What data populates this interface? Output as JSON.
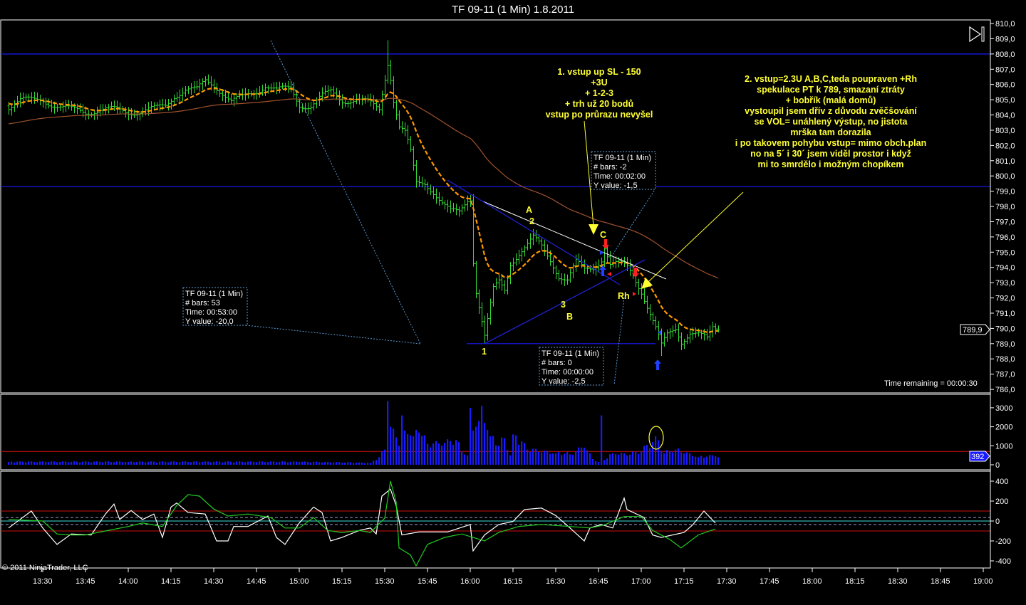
{
  "title": "TF 09-11 (1 Min)  1.8.2011",
  "copyright": "© 2011 NinjaTrader, LLC",
  "time_remaining": "Time remaining = 00:00:30",
  "last_price_label": "789,9",
  "last_volume_label": "392",
  "icons": {
    "scroll_end": "skip-to-end-icon"
  },
  "colors": {
    "bars": "#33dd33",
    "ema_fast": "#ff9900",
    "ema_slow": "#a0522d",
    "hline": "#1a1aff",
    "volume": "#1a1aff",
    "volume_ref": "#cc1111",
    "osc_white": "#ffffff",
    "osc_green": "#22cc22",
    "osc_zero": "#40e0e0",
    "osc_band": "#cc1111",
    "annotation": "#ffff33"
  },
  "annotations": {
    "note1": [
      "1. vstup up SL - 150",
      "+3U",
      "+ 1-2-3",
      "+ trh už 20 bodů",
      "vstup po průrazu nevyšel"
    ],
    "note2": [
      "2. vstup=2.3U A,B,C,teda poupraven +Rh",
      "spekulace PT k 789, smazaní ztráty",
      "+ bobřík (malá domů)",
      "vystoupil jsem dřív z důvodu zvěčšování",
      "se VOL= unáhlený výstup, no jistota",
      "mrška tam dorazila",
      "i po takovem pohybu vstup= mimo obch.plan",
      "no na 5´ i 30´ jsem viděl prostor i když",
      "mi to smrdělo i možným chopíkem"
    ],
    "labels": {
      "A": "A",
      "two": "2",
      "C": "C",
      "three": "3",
      "B": "B",
      "one": "1",
      "Rh": "Rh"
    }
  },
  "measure_boxes": [
    {
      "title": "TF 09-11 (1 Min)",
      "bars": "# bars:   53",
      "time": "Time:     00:53:00",
      "yvalue": "Y value: -20,0"
    },
    {
      "title": "TF 09-11 (1 Min)",
      "bars": "# bars:   -2",
      "time": "Time:     00:02:00",
      "yvalue": "Y value: -1,5"
    },
    {
      "title": "TF 09-11 (1 Min)",
      "bars": "# bars:   0",
      "time": "Time:     00:00:00",
      "yvalue": "Y value: -2,5"
    }
  ],
  "chart_data": [
    {
      "type": "ohlc",
      "panel": "price",
      "ylim": [
        786,
        810
      ],
      "y_ticks": [
        "786,0",
        "787,0",
        "788,0",
        "789,0",
        "790,0",
        "791,0",
        "792,0",
        "793,0",
        "794,0",
        "795,0",
        "796,0",
        "797,0",
        "798,0",
        "799,0",
        "800,0",
        "801,0",
        "802,0",
        "803,0",
        "804,0",
        "805,0",
        "806,0",
        "807,0",
        "808,0",
        "809,0",
        "810,0"
      ],
      "x_ticks": [
        "13:30",
        "13:45",
        "14:00",
        "14:15",
        "14:30",
        "14:45",
        "15:00",
        "15:15",
        "15:30",
        "15:45",
        "16:00",
        "16:15",
        "16:30",
        "16:45",
        "17:00",
        "17:15",
        "17:30",
        "17:45",
        "18:00",
        "18:15",
        "18:30",
        "18:45",
        "19:00"
      ],
      "horizontal_lines": [
        808.0,
        799.3
      ],
      "support_segment": {
        "price": 789.0,
        "from": "16:05",
        "to": "17:05"
      },
      "close_path": [
        [
          "13:18",
          804.6
        ],
        [
          "13:22",
          805.0
        ],
        [
          "13:26",
          804.9
        ],
        [
          "13:30",
          805.0
        ],
        [
          "13:35",
          804.6
        ],
        [
          "13:40",
          804.3
        ],
        [
          "13:45",
          804.2
        ],
        [
          "13:50",
          804.4
        ],
        [
          "13:55",
          804.3
        ],
        [
          "14:00",
          804.2
        ],
        [
          "14:05",
          804.3
        ],
        [
          "14:10",
          804.4
        ],
        [
          "14:13",
          804.6
        ],
        [
          "14:16",
          805.3
        ],
        [
          "14:20",
          805.7
        ],
        [
          "14:24",
          805.6
        ],
        [
          "14:27",
          806.2
        ],
        [
          "14:30",
          806.0
        ],
        [
          "14:33",
          805.5
        ],
        [
          "14:36",
          804.9
        ],
        [
          "14:40",
          805.1
        ],
        [
          "14:45",
          805.6
        ],
        [
          "14:48",
          806.0
        ],
        [
          "14:52",
          805.6
        ],
        [
          "14:57",
          805.7
        ],
        [
          "15:00",
          804.7
        ],
        [
          "15:04",
          804.6
        ],
        [
          "15:08",
          805.2
        ],
        [
          "15:11",
          805.5
        ],
        [
          "15:15",
          805.0
        ],
        [
          "15:20",
          805.0
        ],
        [
          "15:25",
          804.7
        ],
        [
          "15:28",
          804.4
        ],
        [
          "15:29",
          805.5
        ],
        [
          "15:30",
          806.5
        ],
        [
          "15:31",
          807.5
        ],
        [
          "15:32",
          806.5
        ],
        [
          "15:33",
          805.0
        ],
        [
          "15:35",
          803.2
        ],
        [
          "15:37",
          802.8
        ],
        [
          "15:39",
          801.5
        ],
        [
          "15:41",
          799.5
        ],
        [
          "15:44",
          799.6
        ],
        [
          "15:47",
          799.0
        ],
        [
          "15:50",
          798.2
        ],
        [
          "15:53",
          797.6
        ],
        [
          "15:56",
          797.6
        ],
        [
          "15:59",
          798.5
        ],
        [
          "16:00",
          798.6
        ],
        [
          "16:01",
          794.5
        ],
        [
          "16:02",
          792.5
        ],
        [
          "16:04",
          790.5
        ],
        [
          "16:05",
          789.5
        ],
        [
          "16:06",
          790.5
        ],
        [
          "16:08",
          792.5
        ],
        [
          "16:10",
          793.0
        ],
        [
          "16:12",
          792.5
        ],
        [
          "16:14",
          794.3
        ],
        [
          "16:17",
          795.0
        ],
        [
          "16:20",
          795.5
        ],
        [
          "16:22",
          795.9
        ],
        [
          "16:25",
          795.3
        ],
        [
          "16:28",
          794.5
        ],
        [
          "16:31",
          793.5
        ],
        [
          "16:34",
          793.2
        ],
        [
          "16:37",
          794.3
        ],
        [
          "16:40",
          793.8
        ],
        [
          "16:43",
          794.0
        ],
        [
          "16:46",
          794.6
        ],
        [
          "16:47",
          795.4
        ],
        [
          "16:49",
          794.2
        ],
        [
          "16:52",
          794.2
        ],
        [
          "16:55",
          794.0
        ],
        [
          "16:57",
          793.5
        ],
        [
          "17:00",
          792.5
        ],
        [
          "17:03",
          791.0
        ],
        [
          "17:05",
          790.0
        ],
        [
          "17:07",
          788.8
        ],
        [
          "17:09",
          789.5
        ],
        [
          "17:12",
          790.0
        ],
        [
          "17:14",
          789.2
        ],
        [
          "17:17",
          789.8
        ],
        [
          "17:20",
          789.6
        ],
        [
          "17:23",
          789.2
        ],
        [
          "17:25",
          790.0
        ],
        [
          "17:27",
          789.9
        ]
      ],
      "extremes": [
        {
          "time": "15:31",
          "high": 808.9
        },
        {
          "time": "16:01",
          "high": 798.8
        },
        {
          "time": "16:05",
          "low": 789.0
        },
        {
          "time": "17:07",
          "low": 788.2
        }
      ],
      "last": 789.9
    },
    {
      "type": "bar",
      "panel": "volume",
      "ylim": [
        0,
        3500
      ],
      "y_ticks": [
        "0",
        "1000",
        "2000",
        "3000"
      ],
      "reference_line": 700,
      "volume_path": [
        [
          "13:18",
          150
        ],
        [
          "14:00",
          150
        ],
        [
          "15:00",
          150
        ],
        [
          "15:25",
          100
        ],
        [
          "15:28",
          400
        ],
        [
          "15:30",
          800
        ],
        [
          "15:31",
          3350
        ],
        [
          "15:32",
          2000
        ],
        [
          "15:33",
          1900
        ],
        [
          "15:35",
          1000
        ],
        [
          "15:36",
          2600
        ],
        [
          "15:37",
          1800
        ],
        [
          "15:40",
          1500
        ],
        [
          "15:42",
          1700
        ],
        [
          "15:45",
          1100
        ],
        [
          "15:50",
          1000
        ],
        [
          "15:55",
          1300
        ],
        [
          "15:57",
          700
        ],
        [
          "15:59",
          500
        ],
        [
          "16:00",
          3000
        ],
        [
          "16:01",
          1800
        ],
        [
          "16:02",
          2000
        ],
        [
          "16:03",
          2300
        ],
        [
          "16:04",
          3100
        ],
        [
          "16:05",
          2200
        ],
        [
          "16:07",
          1500
        ],
        [
          "16:10",
          1000
        ],
        [
          "16:12",
          1400
        ],
        [
          "16:14",
          500
        ],
        [
          "16:15",
          1600
        ],
        [
          "16:20",
          800
        ],
        [
          "16:25",
          650
        ],
        [
          "16:30",
          600
        ],
        [
          "16:35",
          550
        ],
        [
          "16:40",
          900
        ],
        [
          "16:43",
          300
        ],
        [
          "16:45",
          150
        ],
        [
          "16:46",
          2600
        ],
        [
          "16:47",
          250
        ],
        [
          "16:50",
          600
        ],
        [
          "16:55",
          500
        ],
        [
          "17:00",
          700
        ],
        [
          "17:04",
          1200
        ],
        [
          "17:05",
          1500
        ],
        [
          "17:08",
          600
        ],
        [
          "17:12",
          800
        ],
        [
          "17:15",
          600
        ],
        [
          "17:20",
          400
        ],
        [
          "17:26",
          450
        ],
        [
          "17:27",
          392
        ]
      ],
      "last": 392
    },
    {
      "type": "line",
      "panel": "oscillator",
      "ylim": [
        -480,
        480
      ],
      "y_ticks": [
        "-400",
        "-200",
        "0",
        "200",
        "400"
      ],
      "bands": [
        100,
        -100
      ],
      "inner_bands": [
        35,
        -35
      ],
      "series": [
        {
          "color": "#ffffff",
          "values": [
            [
              "13:18",
              -70
            ],
            [
              "13:26",
              100
            ],
            [
              "13:30",
              -70
            ],
            [
              "13:35",
              -235
            ],
            [
              "13:40",
              -130
            ],
            [
              "13:47",
              -140
            ],
            [
              "13:52",
              70
            ],
            [
              "13:55",
              170
            ],
            [
              "13:57",
              15
            ],
            [
              "14:01",
              105
            ],
            [
              "14:05",
              15
            ],
            [
              "14:09",
              70
            ],
            [
              "14:12",
              -165
            ],
            [
              "14:15",
              140
            ],
            [
              "14:17",
              180
            ],
            [
              "14:21",
              85
            ],
            [
              "14:27",
              70
            ],
            [
              "14:31",
              -200
            ],
            [
              "14:35",
              -200
            ],
            [
              "14:37",
              -55
            ],
            [
              "14:42",
              -55
            ],
            [
              "14:49",
              50
            ],
            [
              "14:52",
              -165
            ],
            [
              "14:55",
              -235
            ],
            [
              "15:00",
              -20
            ],
            [
              "15:05",
              140
            ],
            [
              "15:08",
              85
            ],
            [
              "15:11",
              -200
            ],
            [
              "15:15",
              -165
            ],
            [
              "15:21",
              -95
            ],
            [
              "15:25",
              -70
            ],
            [
              "15:27",
              -130
            ],
            [
              "15:29",
              250
            ],
            [
              "15:32",
              320
            ],
            [
              "15:34",
              155
            ],
            [
              "15:36",
              -140
            ],
            [
              "15:42",
              -110
            ],
            [
              "15:52",
              -110
            ],
            [
              "16:00",
              -35
            ],
            [
              "16:01",
              -300
            ],
            [
              "16:05",
              -140
            ],
            [
              "16:10",
              -35
            ],
            [
              "16:15",
              -5
            ],
            [
              "16:19",
              115
            ],
            [
              "16:25",
              130
            ],
            [
              "16:30",
              55
            ],
            [
              "16:35",
              -70
            ],
            [
              "16:40",
              -200
            ],
            [
              "16:42",
              -70
            ],
            [
              "16:46",
              -35
            ],
            [
              "16:50",
              -70
            ],
            [
              "16:54",
              230
            ],
            [
              "16:55",
              115
            ],
            [
              "17:01",
              35
            ],
            [
              "17:04",
              -140
            ],
            [
              "17:07",
              -165
            ],
            [
              "17:15",
              -115
            ],
            [
              "17:18",
              -40
            ],
            [
              "17:22",
              100
            ],
            [
              "17:26",
              -20
            ]
          ]
        },
        {
          "color": "#22cc22",
          "values": [
            [
              "13:18",
              15
            ],
            [
              "13:30",
              0
            ],
            [
              "13:35",
              -130
            ],
            [
              "13:40",
              -140
            ],
            [
              "13:45",
              -140
            ],
            [
              "13:52",
              -100
            ],
            [
              "14:00",
              -55
            ],
            [
              "14:05",
              -20
            ],
            [
              "14:12",
              -55
            ],
            [
              "14:17",
              155
            ],
            [
              "14:21",
              265
            ],
            [
              "14:25",
              250
            ],
            [
              "14:30",
              120
            ],
            [
              "14:35",
              50
            ],
            [
              "14:42",
              70
            ],
            [
              "14:50",
              35
            ],
            [
              "14:55",
              -70
            ],
            [
              "15:00",
              -70
            ],
            [
              "15:05",
              35
            ],
            [
              "15:10",
              -95
            ],
            [
              "15:15",
              -115
            ],
            [
              "15:21",
              -95
            ],
            [
              "15:25",
              -115
            ],
            [
              "15:30",
              30
            ],
            [
              "15:32",
              400
            ],
            [
              "15:34",
              190
            ],
            [
              "15:35",
              -270
            ],
            [
              "15:39",
              -340
            ],
            [
              "15:41",
              -450
            ],
            [
              "15:45",
              -235
            ],
            [
              "15:51",
              -165
            ],
            [
              "15:57",
              -130
            ],
            [
              "16:01",
              -165
            ],
            [
              "16:05",
              -200
            ],
            [
              "16:10",
              -115
            ],
            [
              "16:17",
              -55
            ],
            [
              "16:25",
              -35
            ],
            [
              "16:35",
              -55
            ],
            [
              "16:42",
              -70
            ],
            [
              "16:47",
              -40
            ],
            [
              "16:54",
              45
            ],
            [
              "17:00",
              45
            ],
            [
              "17:04",
              -95
            ],
            [
              "17:10",
              -185
            ],
            [
              "17:14",
              -270
            ],
            [
              "17:20",
              -140
            ],
            [
              "17:25",
              -90
            ],
            [
              "17:26",
              -80
            ]
          ]
        }
      ]
    }
  ]
}
